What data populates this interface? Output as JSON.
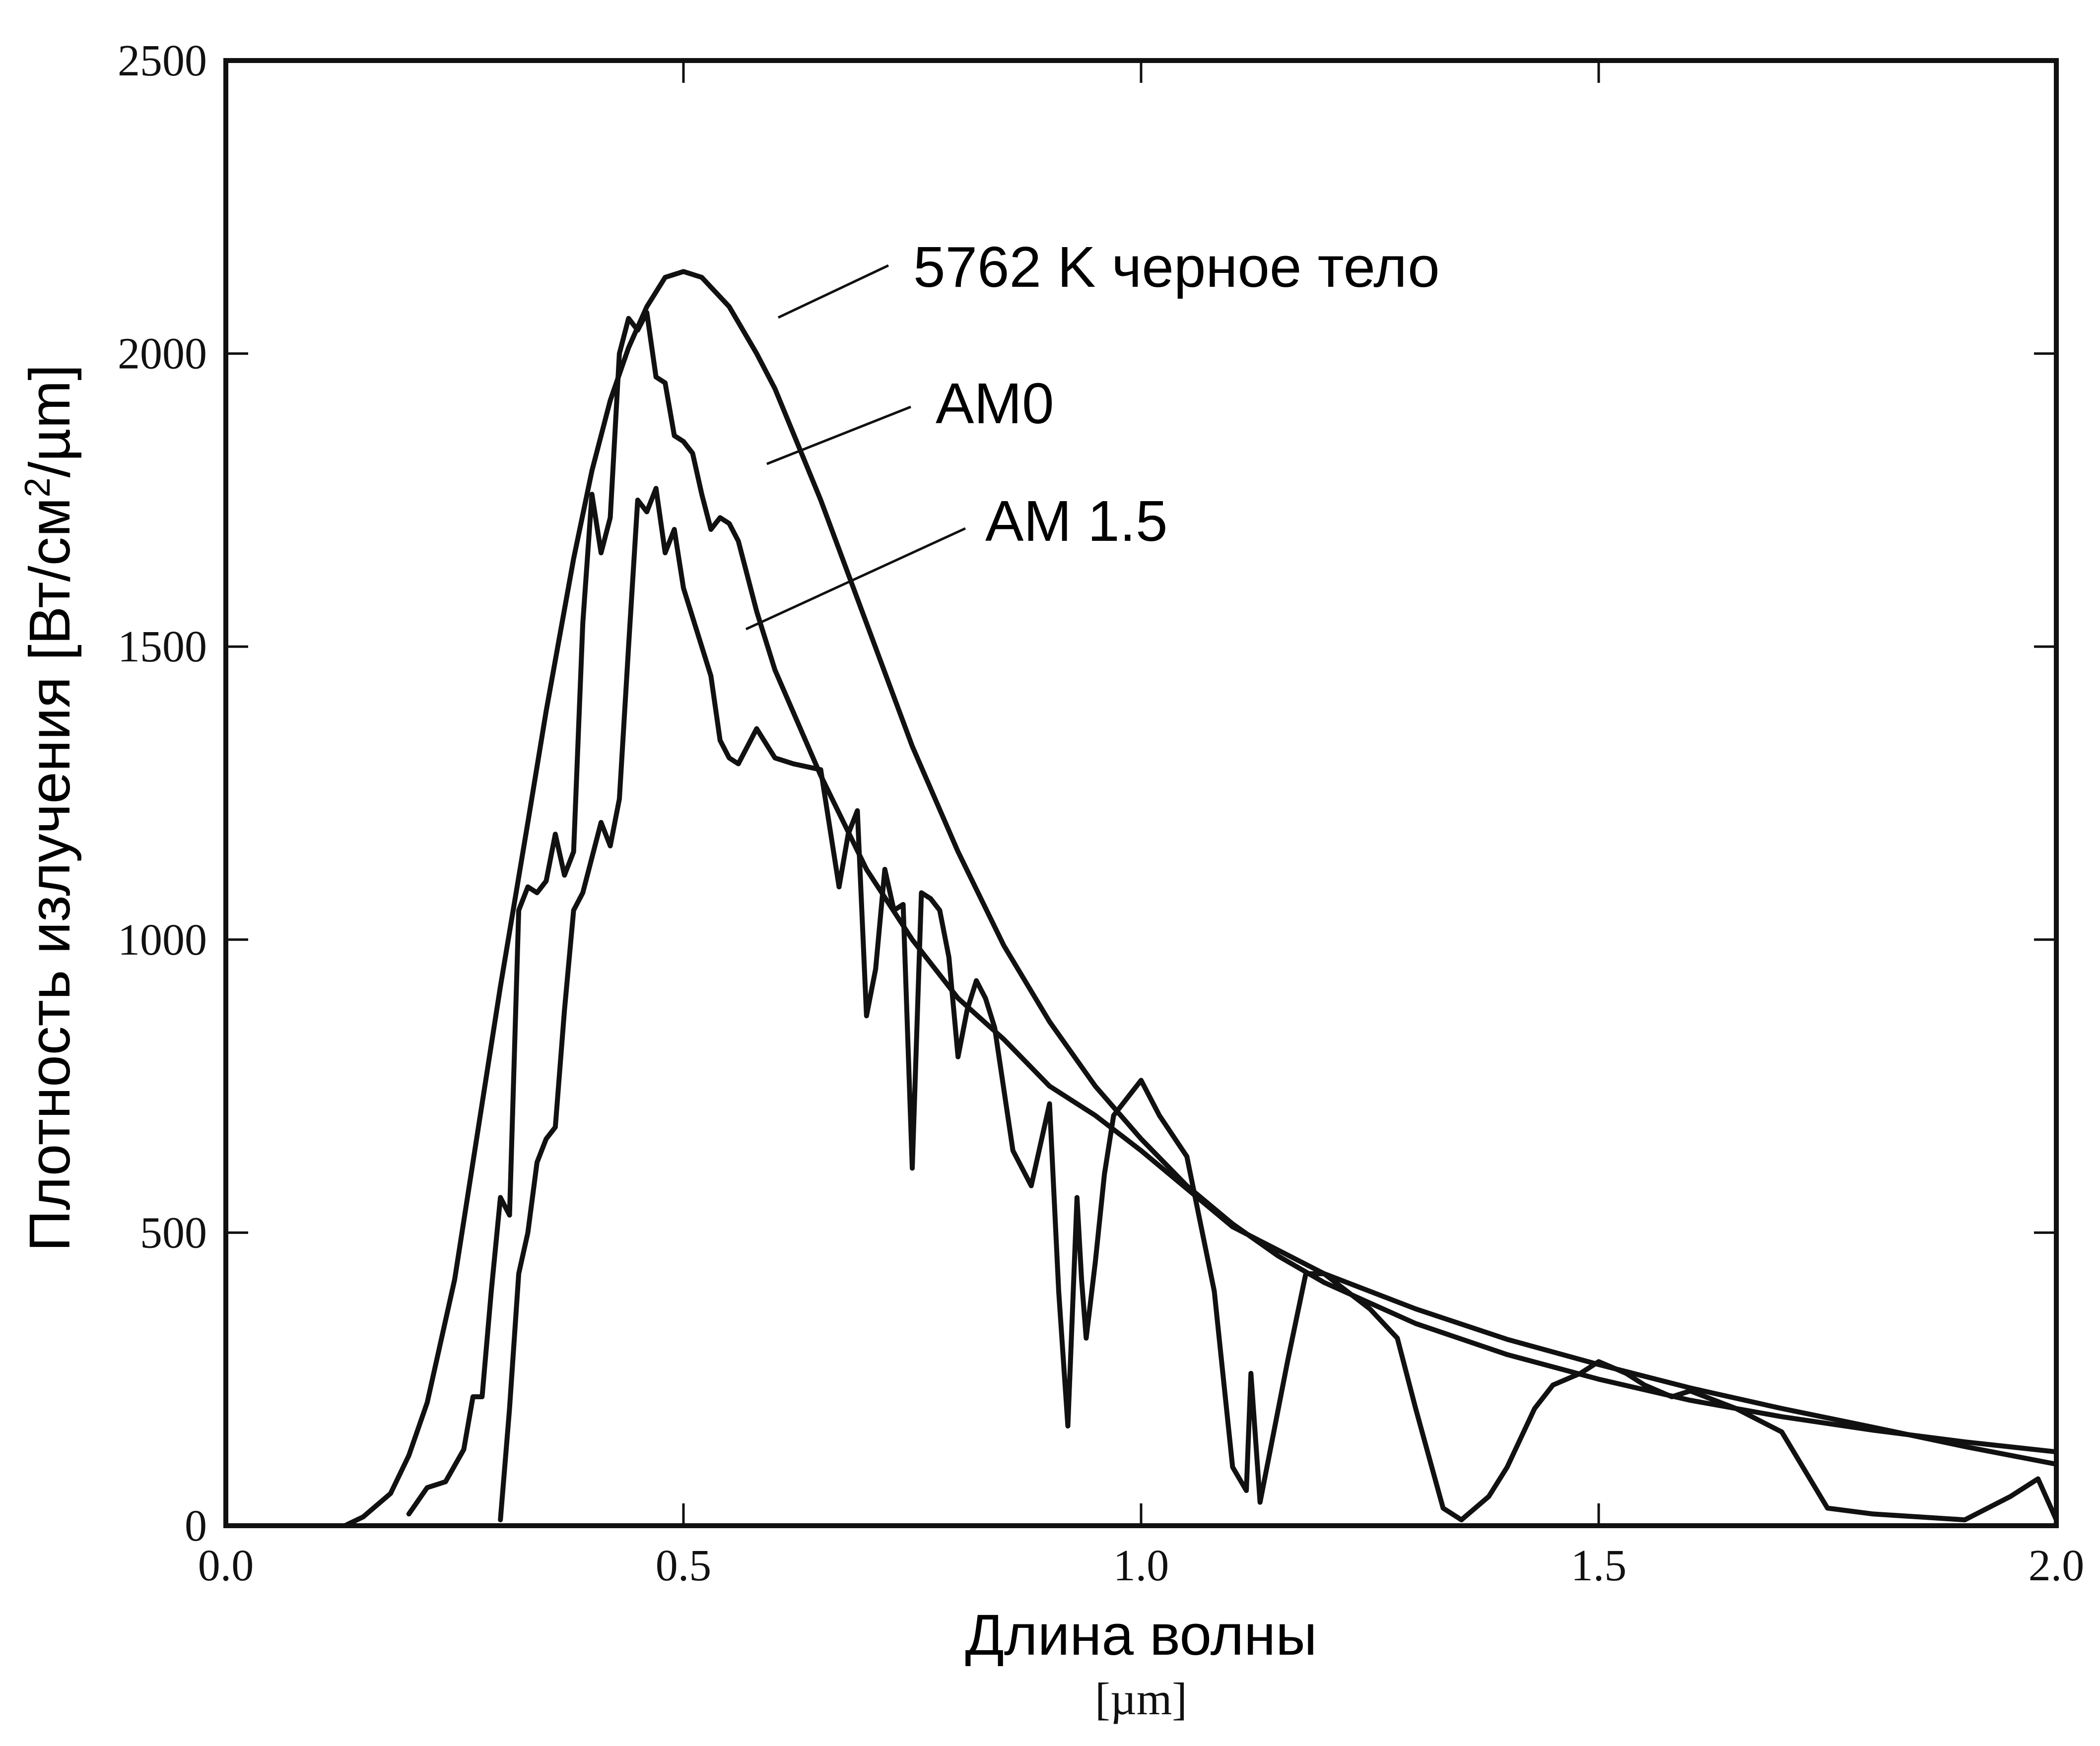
{
  "chart_data": {
    "type": "line",
    "title": "",
    "xlabel": "Длина волны",
    "xunit": "[µm]",
    "ylabel_main": "Плотность излучения [Вт/см",
    "ylabel_sup": "2",
    "ylabel_tail": "/µm]",
    "xlim": [
      0.0,
      2.0
    ],
    "ylim": [
      0,
      2500
    ],
    "x_ticks": [
      "0.0",
      "0.5",
      "1.0",
      "1.5",
      "2.0"
    ],
    "y_ticks": [
      "0",
      "500",
      "1000",
      "1500",
      "2000",
      "2500"
    ],
    "grid": false,
    "annotations": [
      {
        "text": "5762 K черное тело",
        "series": "5762 K черное тело"
      },
      {
        "text": "AM0",
        "series": "AM0"
      },
      {
        "text": "AM 1.5",
        "series": "AM 1.5"
      }
    ],
    "series": [
      {
        "name": "5762 K черное тело",
        "x": [
          0.13,
          0.15,
          0.18,
          0.2,
          0.22,
          0.25,
          0.28,
          0.3,
          0.33,
          0.35,
          0.38,
          0.4,
          0.42,
          0.44,
          0.46,
          0.48,
          0.5,
          0.52,
          0.55,
          0.58,
          0.6,
          0.65,
          0.7,
          0.75,
          0.8,
          0.85,
          0.9,
          0.95,
          1.0,
          1.05,
          1.1,
          1.15,
          1.2,
          1.3,
          1.4,
          1.5,
          1.6,
          1.7,
          1.8,
          1.9,
          2.0
        ],
        "values": [
          0,
          15,
          55,
          120,
          210,
          420,
          720,
          920,
          1200,
          1390,
          1650,
          1800,
          1920,
          2010,
          2080,
          2130,
          2140,
          2130,
          2080,
          2000,
          1940,
          1750,
          1540,
          1330,
          1150,
          990,
          860,
          750,
          660,
          580,
          515,
          460,
          415,
          345,
          292,
          250,
          214,
          186,
          163,
          143,
          126
        ]
      },
      {
        "name": "AM0",
        "x": [
          0.2,
          0.22,
          0.24,
          0.26,
          0.27,
          0.28,
          0.29,
          0.3,
          0.31,
          0.32,
          0.33,
          0.34,
          0.35,
          0.36,
          0.37,
          0.38,
          0.39,
          0.4,
          0.41,
          0.42,
          0.43,
          0.44,
          0.45,
          0.46,
          0.47,
          0.48,
          0.49,
          0.5,
          0.51,
          0.52,
          0.53,
          0.54,
          0.55,
          0.56,
          0.57,
          0.58,
          0.6,
          0.65,
          0.7,
          0.75,
          0.8,
          0.85,
          0.9,
          0.95,
          1.0,
          1.1,
          1.2,
          1.3,
          1.4,
          1.5,
          1.6,
          1.7,
          1.8,
          1.9,
          2.0
        ],
        "values": [
          20,
          65,
          75,
          130,
          220,
          220,
          400,
          560,
          530,
          1050,
          1090,
          1080,
          1100,
          1180,
          1110,
          1150,
          1540,
          1760,
          1660,
          1720,
          2000,
          2060,
          2040,
          2070,
          1960,
          1950,
          1860,
          1850,
          1830,
          1760,
          1700,
          1720,
          1710,
          1680,
          1620,
          1560,
          1460,
          1280,
          1120,
          1000,
          900,
          830,
          750,
          700,
          640,
          510,
          430,
          370,
          318,
          275,
          235,
          200,
          168,
          135,
          105
        ]
      },
      {
        "name": "AM 1.5",
        "x": [
          0.3,
          0.31,
          0.32,
          0.33,
          0.34,
          0.35,
          0.36,
          0.37,
          0.38,
          0.39,
          0.4,
          0.41,
          0.42,
          0.43,
          0.44,
          0.45,
          0.46,
          0.47,
          0.48,
          0.49,
          0.5,
          0.51,
          0.52,
          0.53,
          0.54,
          0.55,
          0.56,
          0.58,
          0.6,
          0.62,
          0.65,
          0.67,
          0.68,
          0.69,
          0.7,
          0.71,
          0.72,
          0.73,
          0.74,
          0.75,
          0.76,
          0.77,
          0.78,
          0.79,
          0.8,
          0.81,
          0.82,
          0.83,
          0.84,
          0.86,
          0.88,
          0.9,
          0.91,
          0.92,
          0.93,
          0.935,
          0.94,
          0.95,
          0.96,
          0.97,
          1.0,
          1.02,
          1.05,
          1.08,
          1.1,
          1.115,
          1.12,
          1.13,
          1.14,
          1.16,
          1.18,
          1.2,
          1.25,
          1.28,
          1.3,
          1.33,
          1.35,
          1.38,
          1.4,
          1.43,
          1.45,
          1.48,
          1.5,
          1.53,
          1.55,
          1.58,
          1.6,
          1.65,
          1.7,
          1.75,
          1.8,
          1.85,
          1.9,
          1.95,
          1.98,
          2.0
        ],
        "values": [
          10,
          200,
          430,
          500,
          620,
          660,
          680,
          880,
          1050,
          1080,
          1140,
          1200,
          1160,
          1240,
          1500,
          1750,
          1730,
          1770,
          1660,
          1700,
          1600,
          1550,
          1500,
          1450,
          1340,
          1310,
          1300,
          1360,
          1310,
          1300,
          1290,
          1090,
          1180,
          1220,
          870,
          950,
          1120,
          1050,
          1060,
          610,
          1080,
          1070,
          1050,
          970,
          800,
          880,
          930,
          900,
          850,
          640,
          580,
          720,
          400,
          170,
          560,
          420,
          320,
          450,
          600,
          700,
          760,
          700,
          630,
          400,
          100,
          60,
          260,
          40,
          120,
          280,
          430,
          430,
          370,
          320,
          200,
          30,
          10,
          50,
          100,
          200,
          240,
          260,
          280,
          260,
          240,
          220,
          230,
          200,
          160,
          30,
          20,
          15,
          10,
          50,
          80,
          10
        ]
      }
    ]
  }
}
